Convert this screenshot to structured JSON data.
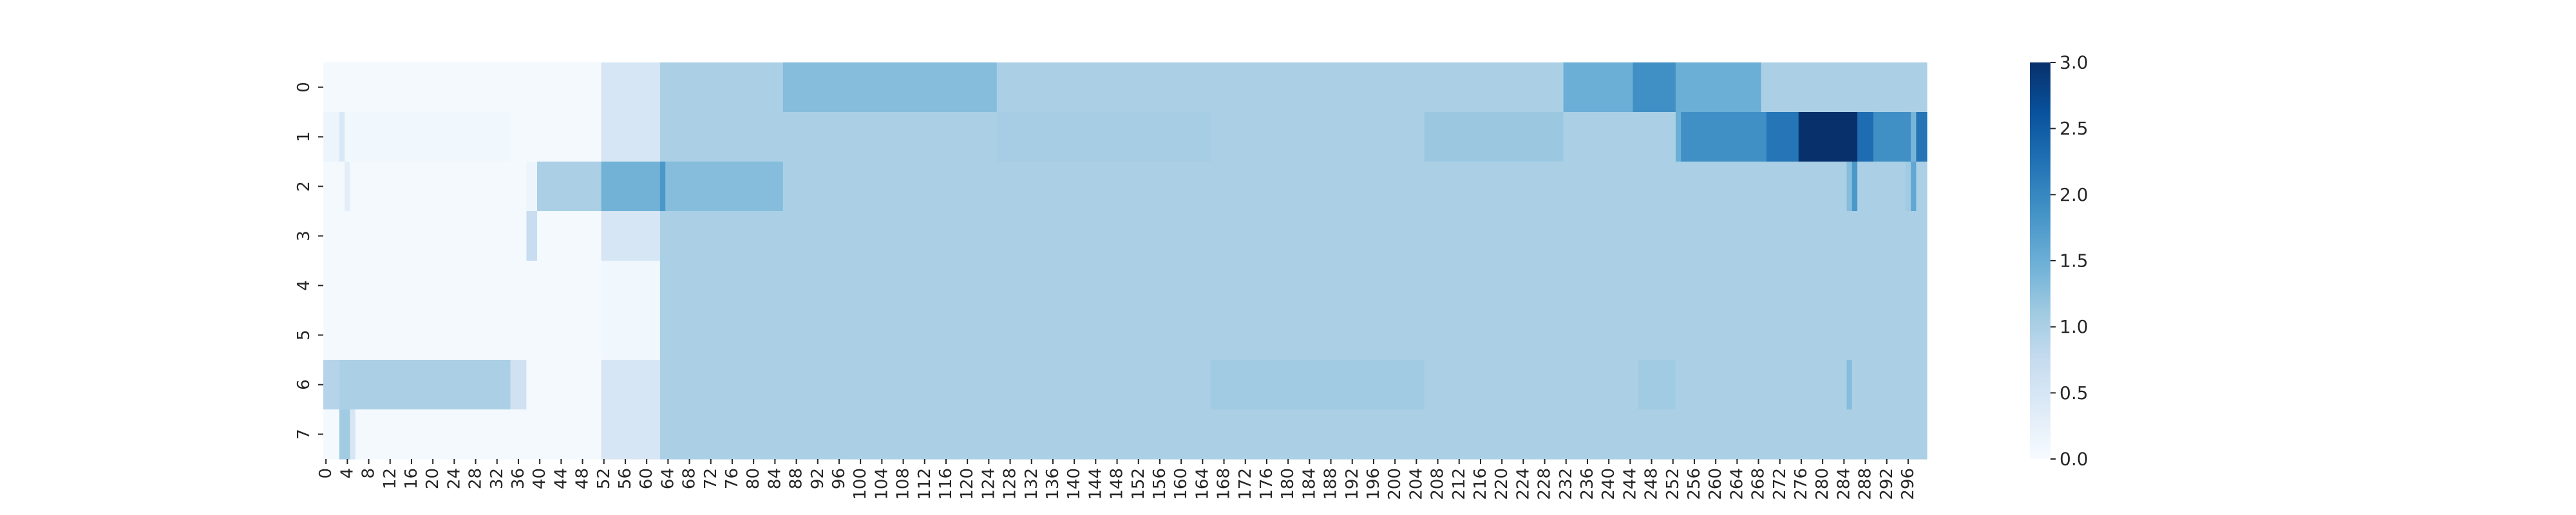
{
  "chart_data": {
    "type": "heatmap",
    "title": "",
    "xlabel": "",
    "ylabel": "",
    "n_cols": 300,
    "n_rows": 8,
    "x_tick_step": 4,
    "y_tick_labels": [
      "0",
      "1",
      "2",
      "3",
      "4",
      "5",
      "6",
      "7"
    ],
    "colormap": "Blues",
    "colormap_stops": [
      "#f7fbff",
      "#deebf7",
      "#c6dbef",
      "#9ecae1",
      "#6baed6",
      "#4292c6",
      "#2171b5",
      "#08519c",
      "#08306b"
    ],
    "value_range": [
      0,
      3
    ],
    "colorbar_ticks": [
      "0.0",
      "0.5",
      "1.0",
      "1.5",
      "2.0",
      "2.5",
      "3.0"
    ],
    "rows": [
      {
        "default": 0.05,
        "segments": [
          [
            52,
            63,
            0.5
          ],
          [
            63,
            86,
            1.0
          ],
          [
            86,
            126,
            1.3
          ],
          [
            126,
            232,
            1.0
          ],
          [
            232,
            245,
            1.5
          ],
          [
            245,
            253,
            1.9
          ],
          [
            253,
            269,
            1.5
          ],
          [
            269,
            300,
            1.0
          ]
        ]
      },
      {
        "default": 1.0,
        "segments": [
          [
            0,
            3,
            0.15
          ],
          [
            3,
            4,
            0.45
          ],
          [
            4,
            35,
            0.1
          ],
          [
            35,
            52,
            0.05
          ],
          [
            52,
            63,
            0.5
          ],
          [
            126,
            166,
            1.05
          ],
          [
            206,
            232,
            1.15
          ],
          [
            253,
            254,
            1.5
          ],
          [
            254,
            270,
            1.9
          ],
          [
            270,
            276,
            2.2
          ],
          [
            276,
            287,
            3.0
          ],
          [
            287,
            290,
            2.3
          ],
          [
            290,
            297,
            1.9
          ],
          [
            297,
            298,
            1.4
          ],
          [
            298,
            300,
            2.2
          ]
        ]
      },
      {
        "default": 1.0,
        "segments": [
          [
            0,
            4,
            0.05
          ],
          [
            4,
            5,
            0.3
          ],
          [
            5,
            38,
            0.05
          ],
          [
            38,
            40,
            0.15
          ],
          [
            40,
            52,
            1.0
          ],
          [
            52,
            63,
            1.45
          ],
          [
            63,
            64,
            1.8
          ],
          [
            64,
            86,
            1.3
          ],
          [
            285,
            286,
            1.3
          ],
          [
            286,
            287,
            1.8
          ],
          [
            296,
            297,
            1.1
          ],
          [
            297,
            298,
            1.6
          ]
        ]
      },
      {
        "default": 1.0,
        "segments": [
          [
            0,
            38,
            0.05
          ],
          [
            38,
            40,
            0.7
          ],
          [
            40,
            52,
            0.05
          ],
          [
            52,
            63,
            0.5
          ]
        ]
      },
      {
        "default": 1.0,
        "segments": [
          [
            0,
            52,
            0.05
          ],
          [
            52,
            63,
            0.1
          ]
        ]
      },
      {
        "default": 1.0,
        "segments": [
          [
            0,
            52,
            0.05
          ],
          [
            52,
            63,
            0.1
          ]
        ]
      },
      {
        "default": 1.0,
        "segments": [
          [
            0,
            3,
            0.9
          ],
          [
            3,
            35,
            1.0
          ],
          [
            35,
            38,
            0.6
          ],
          [
            38,
            52,
            0.05
          ],
          [
            52,
            63,
            0.5
          ],
          [
            166,
            206,
            1.1
          ],
          [
            246,
            253,
            1.1
          ],
          [
            285,
            286,
            1.3
          ]
        ]
      },
      {
        "default": 1.0,
        "segments": [
          [
            0,
            3,
            0.05
          ],
          [
            3,
            5,
            1.1
          ],
          [
            5,
            6,
            0.5
          ],
          [
            6,
            52,
            0.05
          ],
          [
            52,
            63,
            0.5
          ]
        ]
      }
    ]
  }
}
